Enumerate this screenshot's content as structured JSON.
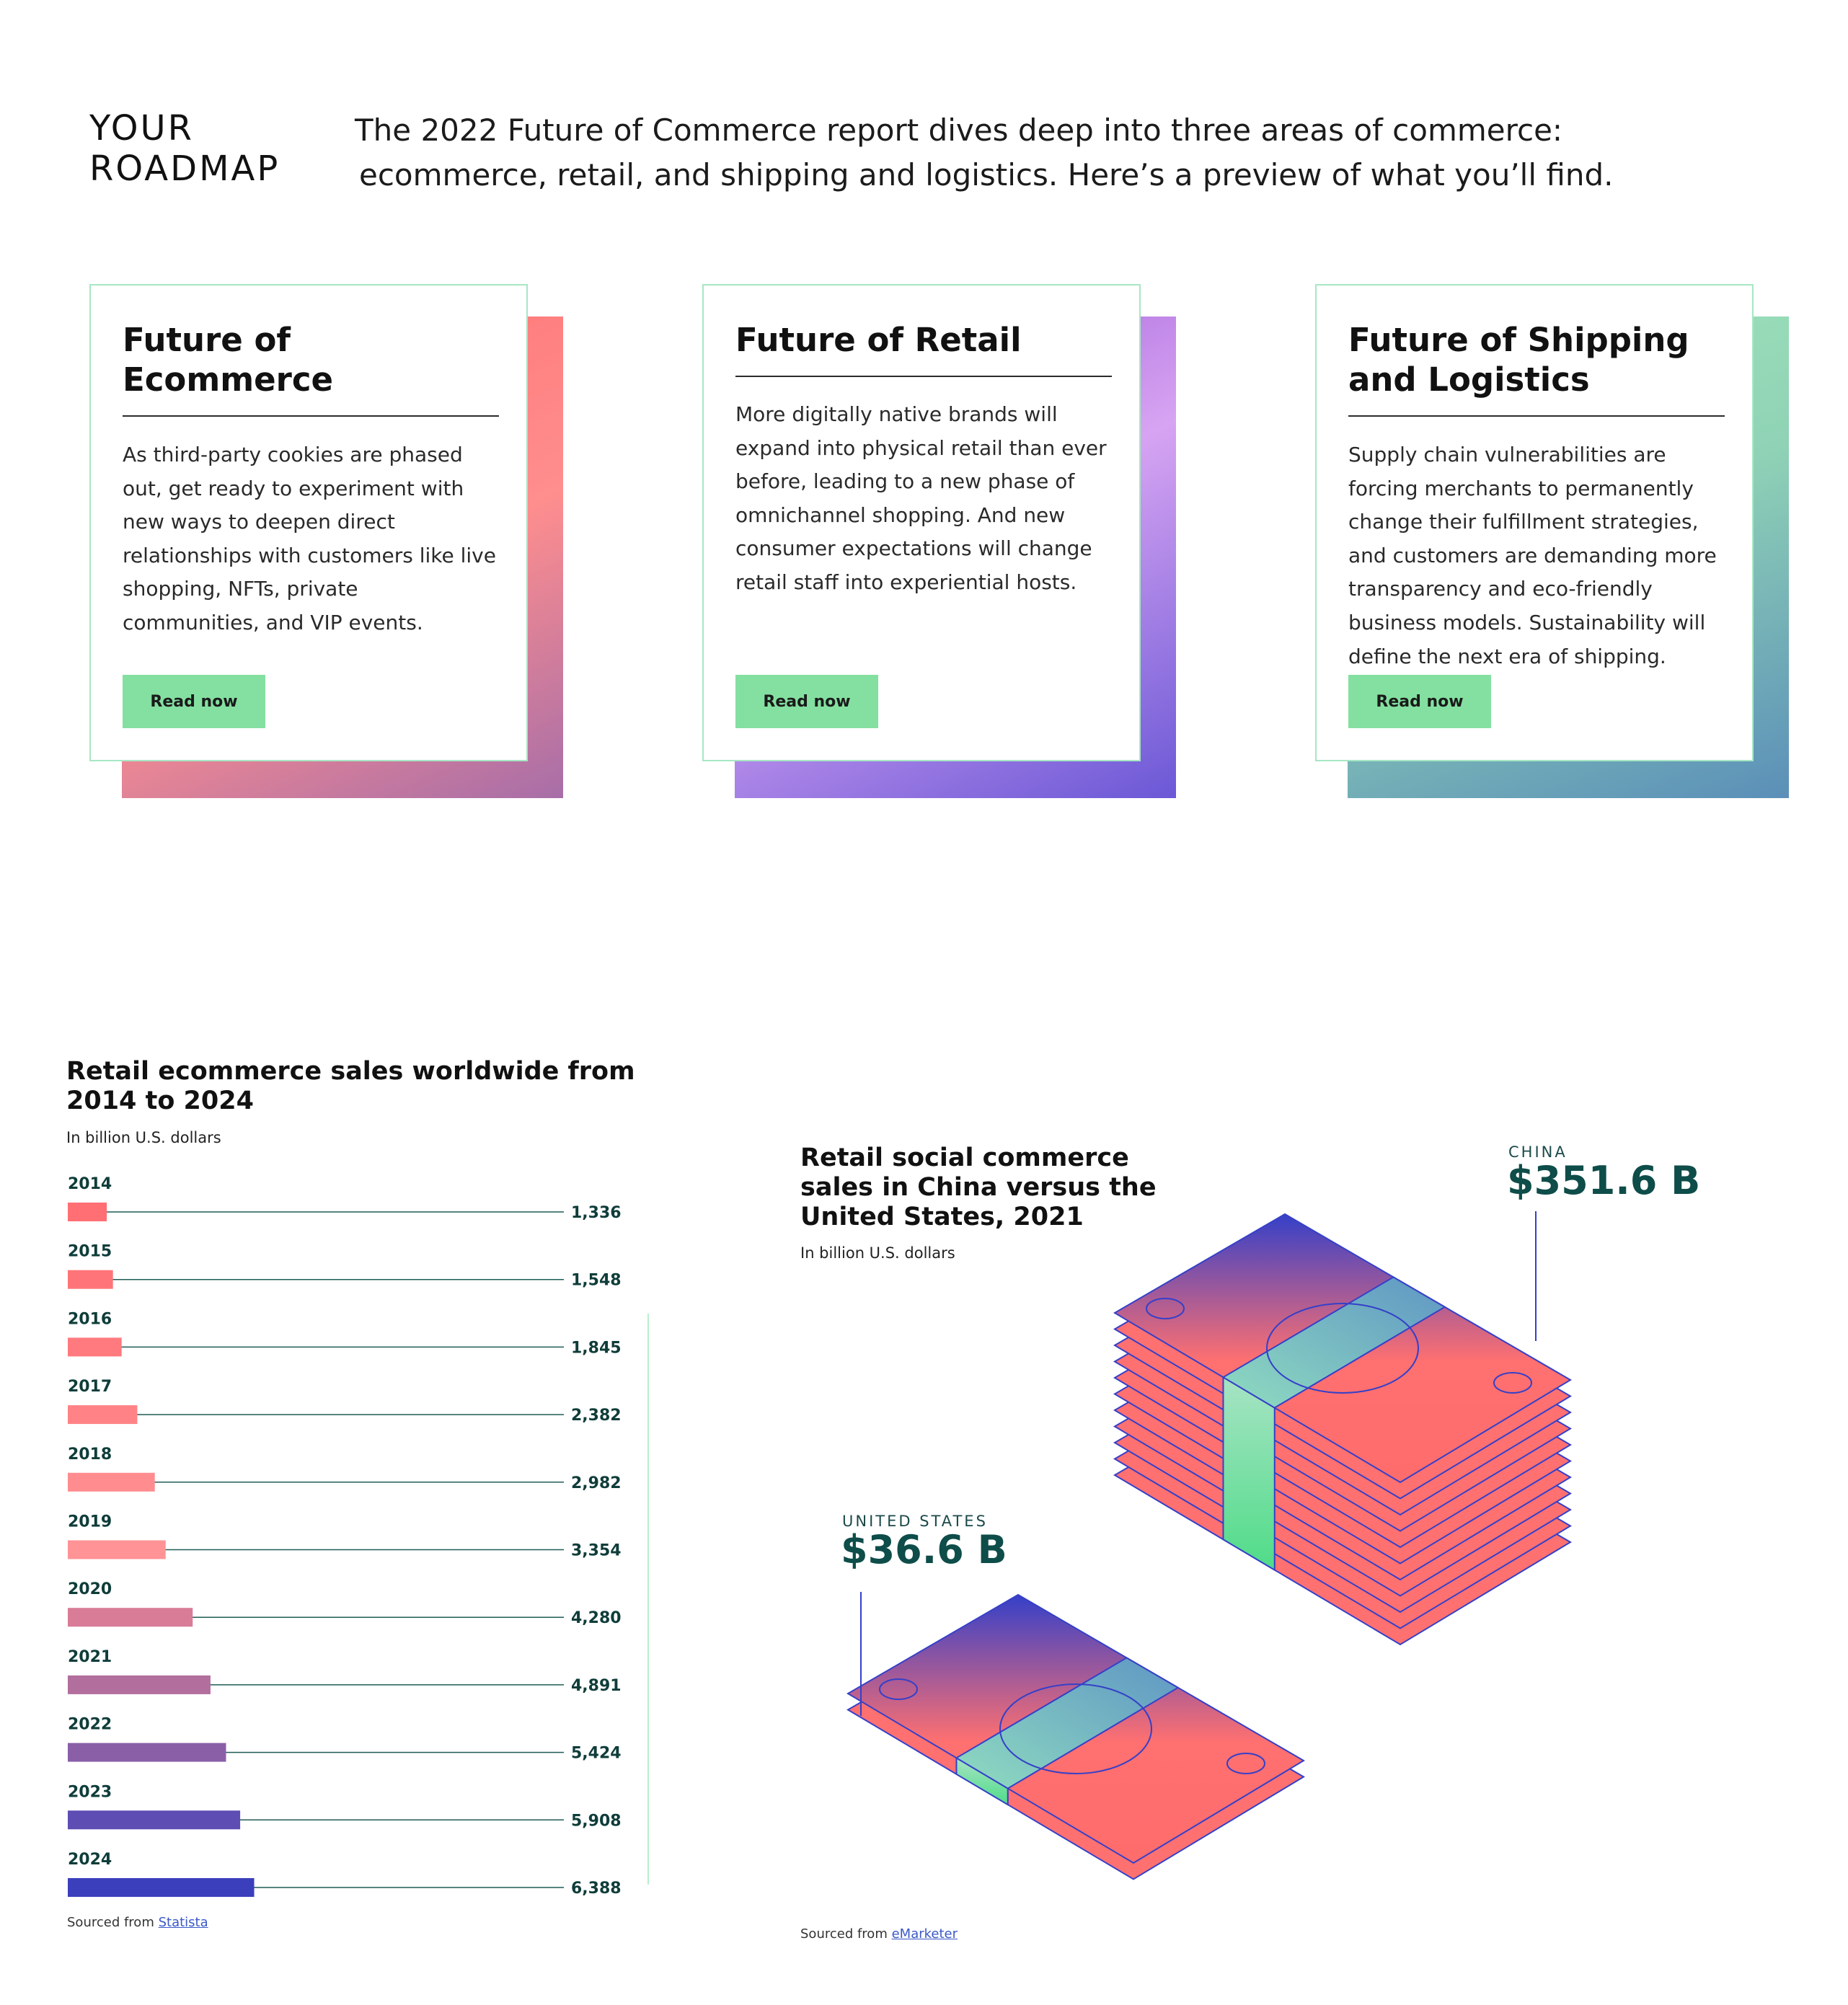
{
  "roadmap": {
    "heading_line1": "YOUR",
    "heading_line2": "ROADMAP",
    "intro_line1": "The 2022 Future of Commerce report dives deep into three areas of commerce:",
    "intro_line2": "ecommerce, retail, and shipping and logistics. Here’s a preview of what you’ll find."
  },
  "cards": [
    {
      "title": "Future of Ecommerce",
      "body": "As third-party cookies are phased out, get ready to experiment with new ways to deepen direct relationships with customers like live shopping, NFTs, private communities, and VIP events.",
      "button": "Read now",
      "gradient": [
        "#ff6f6f",
        "#ff8e8e",
        "#a76ea8"
      ]
    },
    {
      "title": "Future of Retail",
      "body": "More digitally native brands will expand into physical retail than ever before, leading to a new phase of omnichannel shopping. And new consumer expectations will change retail staff into experiential hosts.",
      "button": "Read now",
      "gradient": [
        "#9a56d6",
        "#d7a4f2",
        "#6b58d6"
      ]
    },
    {
      "title": "Future of Shipping and Logistics",
      "body": "Supply chain vulnerabilities are forcing merchants to permanently change their fulfillment strategies, and customers are demanding more transparency and eco-friendly business models. Sustainability will define the next era of shipping.",
      "button": "Read now",
      "gradient": [
        "#a0e6bb",
        "#8fd2b6",
        "#5b8fb8"
      ]
    }
  ],
  "chart_data": [
    {
      "type": "bar",
      "orientation": "horizontal",
      "title": "Retail ecommerce sales worldwide from 2014 to 2024",
      "subtitle": "In billion U.S. dollars",
      "categories": [
        "2014",
        "2015",
        "2016",
        "2017",
        "2018",
        "2019",
        "2020",
        "2021",
        "2022",
        "2023",
        "2024"
      ],
      "values": [
        1336,
        1548,
        1845,
        2382,
        2982,
        3354,
        4280,
        4891,
        5424,
        5908,
        6388
      ],
      "value_labels": [
        "1,336",
        "1,548",
        "1,845",
        "2,382",
        "2,982",
        "3,354",
        "4,280",
        "4,891",
        "5,424",
        "5,908",
        "6,388"
      ],
      "xlim": [
        0,
        17000
      ],
      "bar_colors": [
        "#ff6f73",
        "#ff7478",
        "#ff7a7e",
        "#ff8386",
        "#ff8c8f",
        "#ff9396",
        "#d87c98",
        "#b26f9d",
        "#8a5fa8",
        "#5e4db3",
        "#3b3fbc"
      ],
      "source_prefix": "Sourced from",
      "source_link": "Statista"
    },
    {
      "type": "pictogram",
      "title": "Retail social commerce sales in China versus the United States, 2021",
      "subtitle": "In billion U.S. dollars",
      "categories": [
        "CHINA",
        "UNITED STATES"
      ],
      "values": [
        351.6,
        36.6
      ],
      "value_labels": [
        "$351.6 B",
        "$36.6 B"
      ],
      "source_prefix": "Sourced from",
      "source_link": "eMarketer"
    }
  ]
}
